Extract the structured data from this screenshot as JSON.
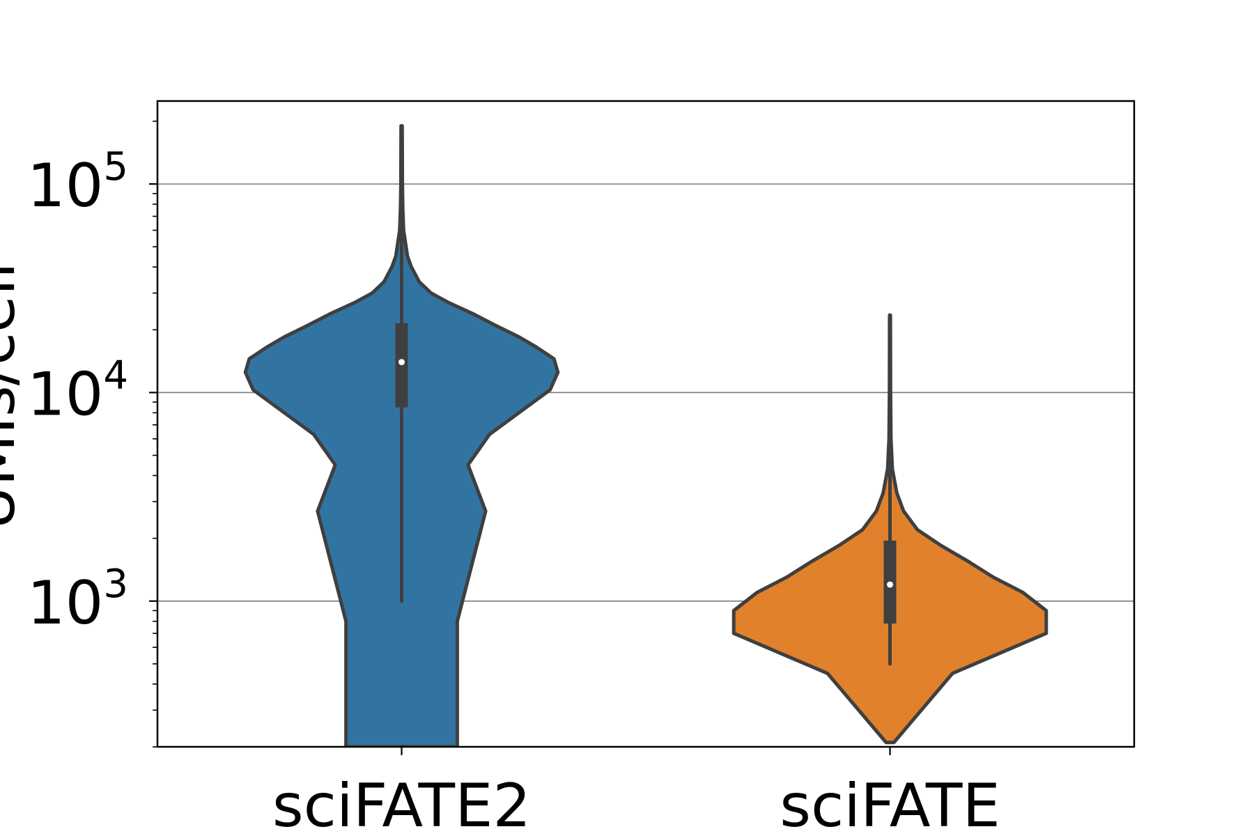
{
  "chart_data": {
    "type": "violin",
    "title": "",
    "xlabel": "",
    "ylabel": "UMIs/cell",
    "yscale": "log",
    "ylim": [
      200,
      250000
    ],
    "grid": "y-major",
    "categories": [
      "sciFATE2",
      "sciFATE"
    ],
    "yticks": [
      {
        "value": 1000,
        "base": "10",
        "exp": "3"
      },
      {
        "value": 10000,
        "base": "10",
        "exp": "4"
      },
      {
        "value": 100000,
        "base": "10",
        "exp": "5"
      }
    ],
    "series": [
      {
        "category": "sciFATE2",
        "color": "#3274a1",
        "min": 1000,
        "q1": 8500,
        "median": 14000,
        "q3": 21500,
        "whisker_high": 37000,
        "max": 190000,
        "density": [
          {
            "y": 200,
            "w": 0.285
          },
          {
            "y": 800,
            "w": 0.285
          },
          {
            "y": 2700,
            "w": 0.43
          },
          {
            "y": 4500,
            "w": 0.34
          },
          {
            "y": 6300,
            "w": 0.45
          },
          {
            "y": 10300,
            "w": 0.76
          },
          {
            "y": 12500,
            "w": 0.8
          },
          {
            "y": 14500,
            "w": 0.78
          },
          {
            "y": 16500,
            "w": 0.69
          },
          {
            "y": 18500,
            "w": 0.6
          },
          {
            "y": 21000,
            "w": 0.48
          },
          {
            "y": 24000,
            "w": 0.36
          },
          {
            "y": 27000,
            "w": 0.24
          },
          {
            "y": 30000,
            "w": 0.15
          },
          {
            "y": 34000,
            "w": 0.09
          },
          {
            "y": 40000,
            "w": 0.05
          },
          {
            "y": 45000,
            "w": 0.03
          },
          {
            "y": 52000,
            "w": 0.02
          },
          {
            "y": 60000,
            "w": 0.01
          },
          {
            "y": 75000,
            "w": 0.006
          },
          {
            "y": 100000,
            "w": 0.004
          },
          {
            "y": 190000,
            "w": 0.003
          }
        ]
      },
      {
        "category": "sciFATE",
        "color": "#e1812c",
        "min": 500,
        "q1": 780,
        "median": 1200,
        "q3": 1950,
        "whisker_high": 3300,
        "max": 23500,
        "density": [
          {
            "y": 210,
            "w": 0.02
          },
          {
            "y": 450,
            "w": 0.32
          },
          {
            "y": 700,
            "w": 0.8
          },
          {
            "y": 900,
            "w": 0.8
          },
          {
            "y": 1100,
            "w": 0.68
          },
          {
            "y": 1300,
            "w": 0.53
          },
          {
            "y": 1550,
            "w": 0.4
          },
          {
            "y": 1850,
            "w": 0.26
          },
          {
            "y": 2200,
            "w": 0.14
          },
          {
            "y": 2700,
            "w": 0.07
          },
          {
            "y": 3300,
            "w": 0.035
          },
          {
            "y": 4300,
            "w": 0.012
          },
          {
            "y": 6000,
            "w": 0.005
          },
          {
            "y": 10000,
            "w": 0.003
          },
          {
            "y": 23500,
            "w": 0.002
          }
        ]
      }
    ]
  }
}
